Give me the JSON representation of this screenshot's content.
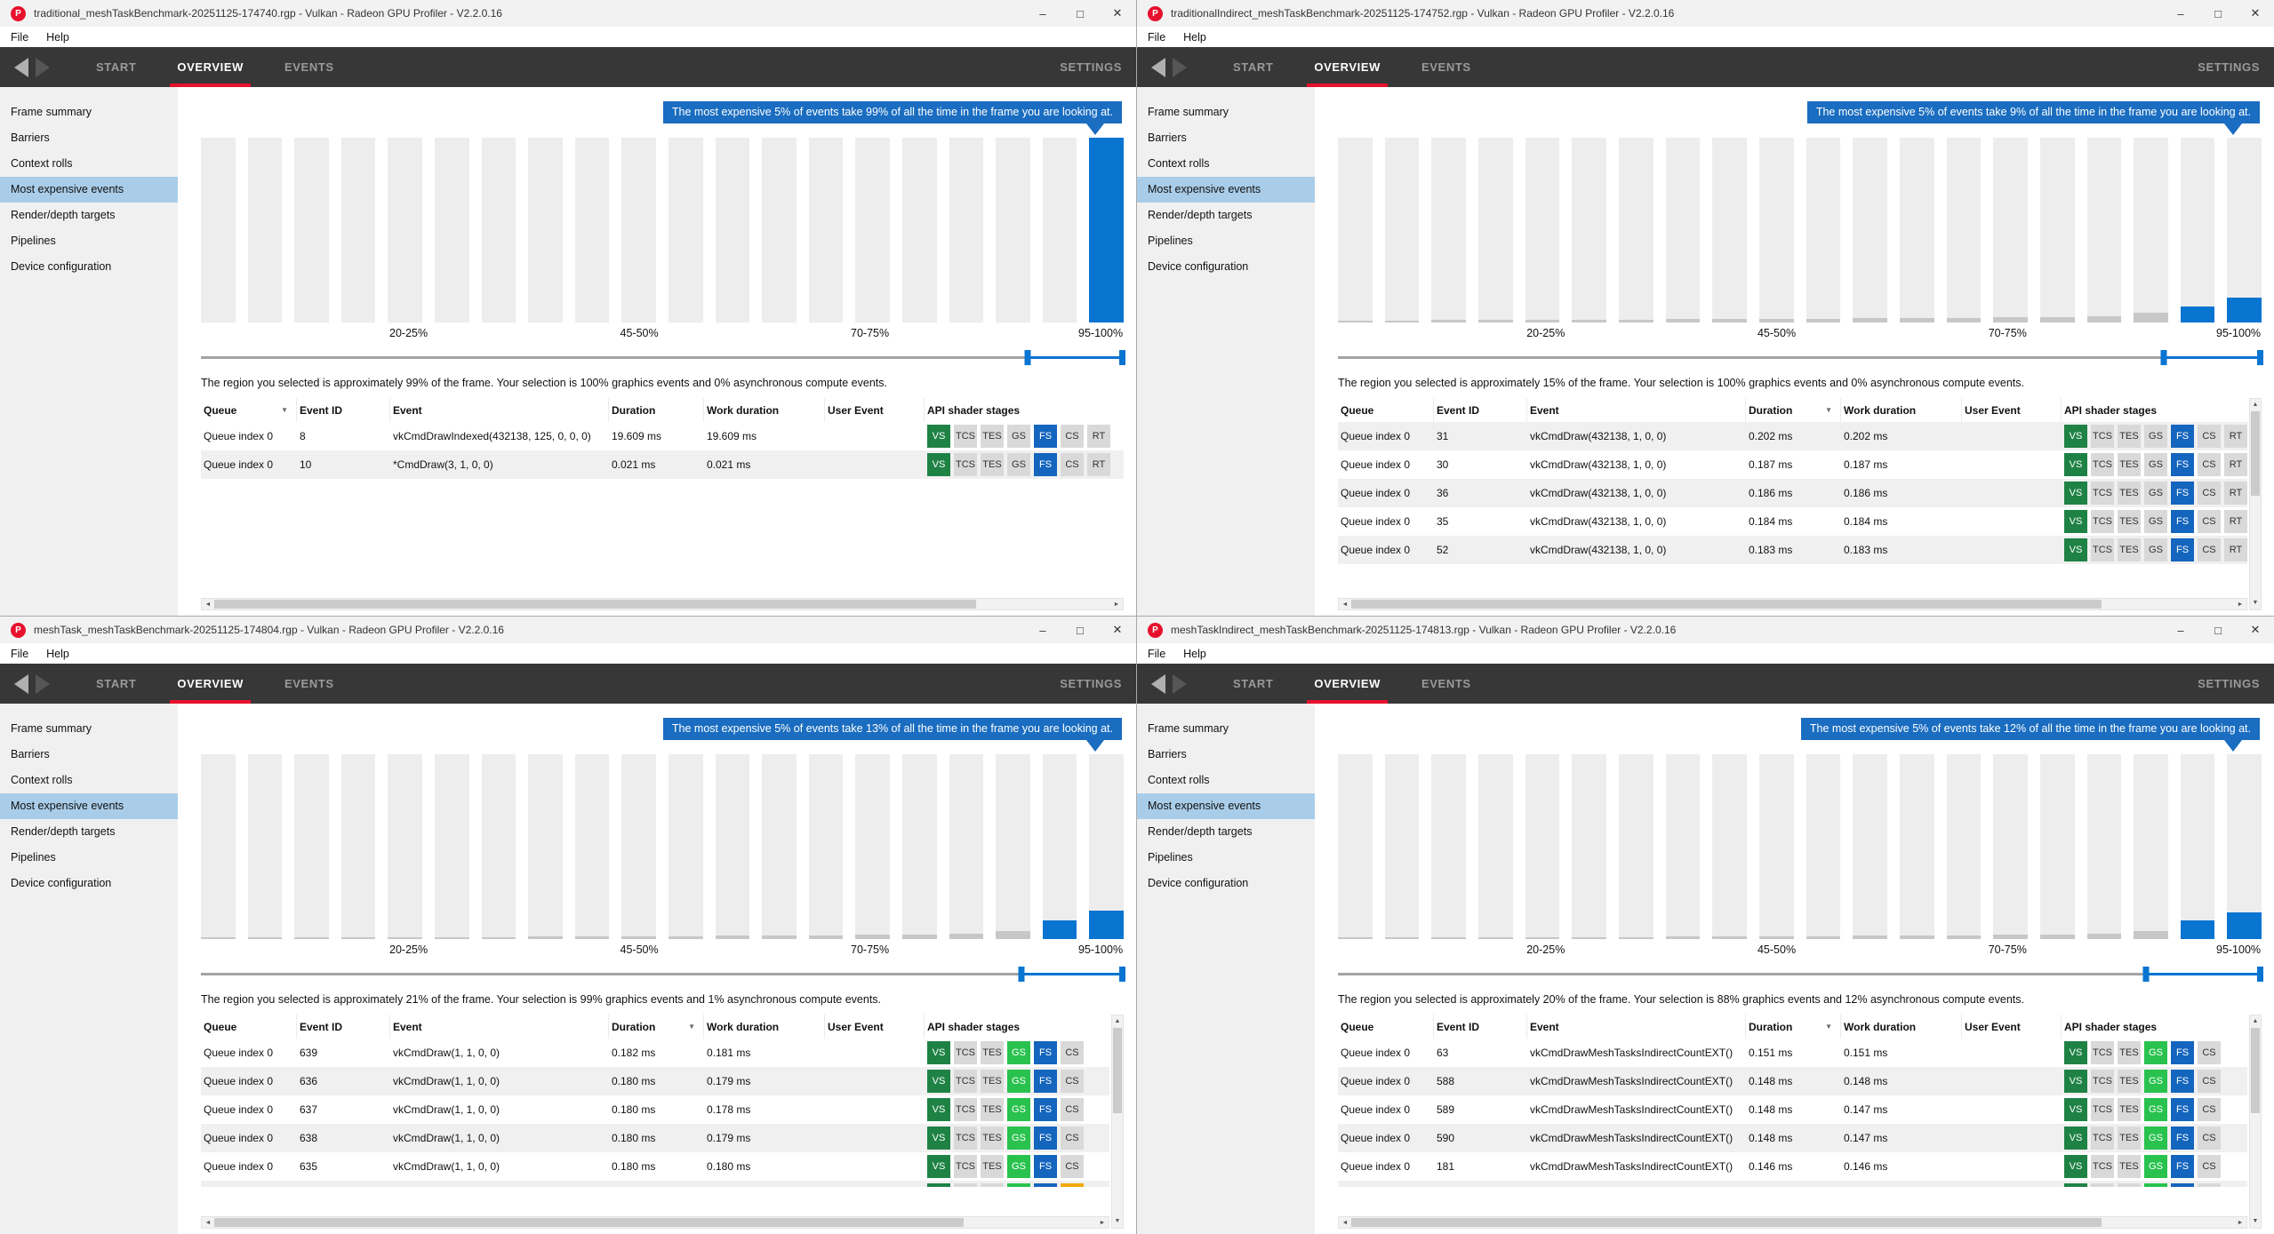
{
  "shared": {
    "menu": [
      "File",
      "Help"
    ],
    "nav": {
      "tabs": [
        "START",
        "OVERVIEW",
        "EVENTS"
      ],
      "active_tab": "OVERVIEW",
      "settings": "SETTINGS"
    },
    "sidebar": {
      "items": [
        "Frame summary",
        "Barriers",
        "Context rolls",
        "Most expensive events",
        "Render/depth targets",
        "Pipelines",
        "Device configuration"
      ],
      "selected_index": 3
    },
    "table_columns": [
      "Queue",
      "Event ID",
      "Event",
      "Duration",
      "Work duration",
      "User Event",
      "API shader stages"
    ],
    "axis_labels": [
      "20-25%",
      "45-50%",
      "70-75%",
      "95-100%"
    ],
    "icons": {
      "app_icon": "P",
      "minimize": "–",
      "maximize": "□",
      "close": "✕",
      "sort_desc": "▼",
      "scroll_up": "▲",
      "scroll_down": "▼",
      "scroll_left": "◄",
      "scroll_right": "►"
    },
    "colors": {
      "accent_red": "#e8112d",
      "selection_blue": "#0a74d1",
      "callout_blue": "#1a6dc0",
      "sidebar_selected": "#a9cde9",
      "badge_green": "#1e8245",
      "badge_bright_green": "#29c24e",
      "badge_blue": "#1465bd",
      "badge_gray": "#d9d9d9",
      "badge_orange": "#f2a90a",
      "bar_gray": "#ededed",
      "bar_unselected_fill": "#c7c7c7"
    }
  },
  "windows": [
    {
      "title": "traditional_meshTaskBenchmark-20251125-174740.rgp - Vulkan - Radeon GPU Profiler - V2.2.0.16",
      "callout": "The most expensive 5% of events take 99% of all the time in the frame you are looking at.",
      "selection_text": "The region you selected is approximately 99% of the frame. Your selection is 100% graphics events and 0% asynchronous compute events.",
      "slider": {
        "start": 0.896,
        "end": 1.0
      },
      "histogram_fills": [
        [
          0,
          "g"
        ],
        [
          0,
          "g"
        ],
        [
          0,
          "g"
        ],
        [
          0,
          "g"
        ],
        [
          0,
          "g"
        ],
        [
          0,
          "g"
        ],
        [
          0,
          "g"
        ],
        [
          0,
          "g"
        ],
        [
          0,
          "g"
        ],
        [
          0,
          "g"
        ],
        [
          0,
          "g"
        ],
        [
          0,
          "g"
        ],
        [
          0,
          "g"
        ],
        [
          0,
          "g"
        ],
        [
          0,
          "g"
        ],
        [
          0,
          "g"
        ],
        [
          0,
          "g"
        ],
        [
          0,
          "g"
        ],
        [
          0,
          "g"
        ],
        [
          1,
          "b"
        ]
      ],
      "table": {
        "sort_column": "Queue",
        "stage_labels": [
          "VS",
          "TCS",
          "TES",
          "GS",
          "FS",
          "CS",
          "RT"
        ],
        "stage_colors": [
          "green",
          "gray",
          "gray",
          "gray",
          "blue",
          "gray",
          "gray"
        ],
        "alt_start": 0,
        "rows": [
          {
            "queue": "Queue index 0",
            "event_id": "8",
            "event": "vkCmdDrawIndexed(432138, 125, 0, 0, 0)",
            "duration": "19.609 ms",
            "work_duration": "19.609 ms",
            "user_event": ""
          },
          {
            "queue": "Queue index 0",
            "event_id": "10",
            "event": "*CmdDraw(3, 1, 0, 0)",
            "duration": "0.021 ms",
            "work_duration": "0.021 ms",
            "user_event": ""
          }
        ],
        "partial_row_stage_colors": null,
        "scrollbars": {
          "vertical": false,
          "horizontal": true
        }
      }
    },
    {
      "title": "traditionalIndirect_meshTaskBenchmark-20251125-174752.rgp - Vulkan - Radeon GPU Profiler - V2.2.0.16",
      "callout": "The most expensive 5% of events take 9% of all the time in the frame you are looking at.",
      "selection_text": "The region you selected is approximately 15% of the frame. Your selection is 100% graphics events and 0% asynchronous compute events.",
      "slider": {
        "start": 0.894,
        "end": 1.0
      },
      "histogram_fills": [
        [
          0.012,
          "g"
        ],
        [
          0.012,
          "g"
        ],
        [
          0.013,
          "g"
        ],
        [
          0.013,
          "g"
        ],
        [
          0.014,
          "g"
        ],
        [
          0.015,
          "g"
        ],
        [
          0.016,
          "g"
        ],
        [
          0.017,
          "g"
        ],
        [
          0.018,
          "g"
        ],
        [
          0.019,
          "g"
        ],
        [
          0.02,
          "g"
        ],
        [
          0.022,
          "g"
        ],
        [
          0.024,
          "g"
        ],
        [
          0.026,
          "g"
        ],
        [
          0.028,
          "g"
        ],
        [
          0.031,
          "g"
        ],
        [
          0.035,
          "g"
        ],
        [
          0.055,
          "g"
        ],
        [
          0.085,
          "b"
        ],
        [
          0.135,
          "b"
        ]
      ],
      "table": {
        "sort_column": "Duration",
        "stage_labels": [
          "VS",
          "TCS",
          "TES",
          "GS",
          "FS",
          "CS",
          "RT"
        ],
        "stage_colors": [
          "green",
          "gray",
          "gray",
          "gray",
          "blue",
          "gray",
          "gray"
        ],
        "alt_start": 1,
        "rows": [
          {
            "queue": "Queue index 0",
            "event_id": "31",
            "event": "vkCmdDraw(432138, 1, 0, 0)",
            "duration": "0.202 ms",
            "work_duration": "0.202 ms",
            "user_event": ""
          },
          {
            "queue": "Queue index 0",
            "event_id": "30",
            "event": "vkCmdDraw(432138, 1, 0, 0)",
            "duration": "0.187 ms",
            "work_duration": "0.187 ms",
            "user_event": ""
          },
          {
            "queue": "Queue index 0",
            "event_id": "36",
            "event": "vkCmdDraw(432138, 1, 0, 0)",
            "duration": "0.186 ms",
            "work_duration": "0.186 ms",
            "user_event": ""
          },
          {
            "queue": "Queue index 0",
            "event_id": "35",
            "event": "vkCmdDraw(432138, 1, 0, 0)",
            "duration": "0.184 ms",
            "work_duration": "0.184 ms",
            "user_event": ""
          },
          {
            "queue": "Queue index 0",
            "event_id": "52",
            "event": "vkCmdDraw(432138, 1, 0, 0)",
            "duration": "0.183 ms",
            "work_duration": "0.183 ms",
            "user_event": ""
          }
        ],
        "partial_row_stage_colors": null,
        "scrollbars": {
          "vertical": true,
          "horizontal": true
        }
      }
    },
    {
      "title": "meshTask_meshTaskBenchmark-20251125-174804.rgp - Vulkan - Radeon GPU Profiler - V2.2.0.16",
      "callout": "The most expensive 5% of events take 13% of all the time in the frame you are looking at.",
      "selection_text": "The region you selected is approximately 21% of the frame. Your selection is 99% graphics events and 1% asynchronous compute events.",
      "slider": {
        "start": 0.889,
        "end": 1.0
      },
      "histogram_fills": [
        [
          0.008,
          "g"
        ],
        [
          0.008,
          "g"
        ],
        [
          0.009,
          "g"
        ],
        [
          0.009,
          "g"
        ],
        [
          0.01,
          "g"
        ],
        [
          0.011,
          "g"
        ],
        [
          0.012,
          "g"
        ],
        [
          0.013,
          "g"
        ],
        [
          0.014,
          "g"
        ],
        [
          0.015,
          "g"
        ],
        [
          0.016,
          "g"
        ],
        [
          0.017,
          "g"
        ],
        [
          0.019,
          "g"
        ],
        [
          0.021,
          "g"
        ],
        [
          0.023,
          "g"
        ],
        [
          0.026,
          "g"
        ],
        [
          0.03,
          "g"
        ],
        [
          0.045,
          "g"
        ],
        [
          0.1,
          "b"
        ],
        [
          0.155,
          "b"
        ]
      ],
      "table": {
        "sort_column": "Duration",
        "stage_labels": [
          "VS",
          "TCS",
          "TES",
          "GS",
          "FS",
          "CS"
        ],
        "stage_colors": [
          "green",
          "gray",
          "gray",
          "bgreen",
          "blue",
          "gray"
        ],
        "alt_start": 0,
        "rows": [
          {
            "queue": "Queue index 0",
            "event_id": "639",
            "event": "vkCmdDraw(1, 1, 0, 0)",
            "duration": "0.182 ms",
            "work_duration": "0.181 ms",
            "user_event": ""
          },
          {
            "queue": "Queue index 0",
            "event_id": "636",
            "event": "vkCmdDraw(1, 1, 0, 0)",
            "duration": "0.180 ms",
            "work_duration": "0.179 ms",
            "user_event": ""
          },
          {
            "queue": "Queue index 0",
            "event_id": "637",
            "event": "vkCmdDraw(1, 1, 0, 0)",
            "duration": "0.180 ms",
            "work_duration": "0.178 ms",
            "user_event": ""
          },
          {
            "queue": "Queue index 0",
            "event_id": "638",
            "event": "vkCmdDraw(1, 1, 0, 0)",
            "duration": "0.180 ms",
            "work_duration": "0.179 ms",
            "user_event": ""
          },
          {
            "queue": "Queue index 0",
            "event_id": "635",
            "event": "vkCmdDraw(1, 1, 0, 0)",
            "duration": "0.180 ms",
            "work_duration": "0.180 ms",
            "user_event": ""
          }
        ],
        "partial_row_stage_colors": [
          "green",
          "gray",
          "gray",
          "bgreen",
          "blue",
          "orange"
        ],
        "scrollbars": {
          "vertical": true,
          "horizontal": true
        }
      }
    },
    {
      "title": "meshTaskIndirect_meshTaskBenchmark-20251125-174813.rgp - Vulkan - Radeon GPU Profiler - V2.2.0.16",
      "callout": "The most expensive 5% of events take 12% of all the time in the frame you are looking at.",
      "selection_text": "The region you selected is approximately 20% of the frame. Your selection is 88% graphics events and 12% asynchronous compute events.",
      "slider": {
        "start": 0.875,
        "end": 1.0
      },
      "histogram_fills": [
        [
          0.008,
          "g"
        ],
        [
          0.008,
          "g"
        ],
        [
          0.009,
          "g"
        ],
        [
          0.009,
          "g"
        ],
        [
          0.01,
          "g"
        ],
        [
          0.011,
          "g"
        ],
        [
          0.012,
          "g"
        ],
        [
          0.013,
          "g"
        ],
        [
          0.014,
          "g"
        ],
        [
          0.015,
          "g"
        ],
        [
          0.016,
          "g"
        ],
        [
          0.017,
          "g"
        ],
        [
          0.019,
          "g"
        ],
        [
          0.021,
          "g"
        ],
        [
          0.023,
          "g"
        ],
        [
          0.026,
          "g"
        ],
        [
          0.03,
          "g"
        ],
        [
          0.045,
          "g"
        ],
        [
          0.1,
          "b"
        ],
        [
          0.145,
          "b"
        ]
      ],
      "table": {
        "sort_column": "Duration",
        "stage_labels": [
          "VS",
          "TCS",
          "TES",
          "GS",
          "FS",
          "CS"
        ],
        "stage_colors": [
          "green",
          "gray",
          "gray",
          "bgreen",
          "blue",
          "gray"
        ],
        "alt_start": 0,
        "rows": [
          {
            "queue": "Queue index 0",
            "event_id": "63",
            "event": "vkCmdDrawMeshTasksIndirectCountEXT()",
            "duration": "0.151 ms",
            "work_duration": "0.151 ms",
            "user_event": ""
          },
          {
            "queue": "Queue index 0",
            "event_id": "588",
            "event": "vkCmdDrawMeshTasksIndirectCountEXT()",
            "duration": "0.148 ms",
            "work_duration": "0.148 ms",
            "user_event": ""
          },
          {
            "queue": "Queue index 0",
            "event_id": "589",
            "event": "vkCmdDrawMeshTasksIndirectCountEXT()",
            "duration": "0.148 ms",
            "work_duration": "0.147 ms",
            "user_event": ""
          },
          {
            "queue": "Queue index 0",
            "event_id": "590",
            "event": "vkCmdDrawMeshTasksIndirectCountEXT()",
            "duration": "0.148 ms",
            "work_duration": "0.147 ms",
            "user_event": ""
          },
          {
            "queue": "Queue index 0",
            "event_id": "181",
            "event": "vkCmdDrawMeshTasksIndirectCountEXT()",
            "duration": "0.146 ms",
            "work_duration": "0.146 ms",
            "user_event": ""
          }
        ],
        "partial_row_stage_colors": [
          "green",
          "gray",
          "gray",
          "bgreen",
          "blue",
          "gray"
        ],
        "scrollbars": {
          "vertical": true,
          "horizontal": true
        }
      }
    }
  ]
}
